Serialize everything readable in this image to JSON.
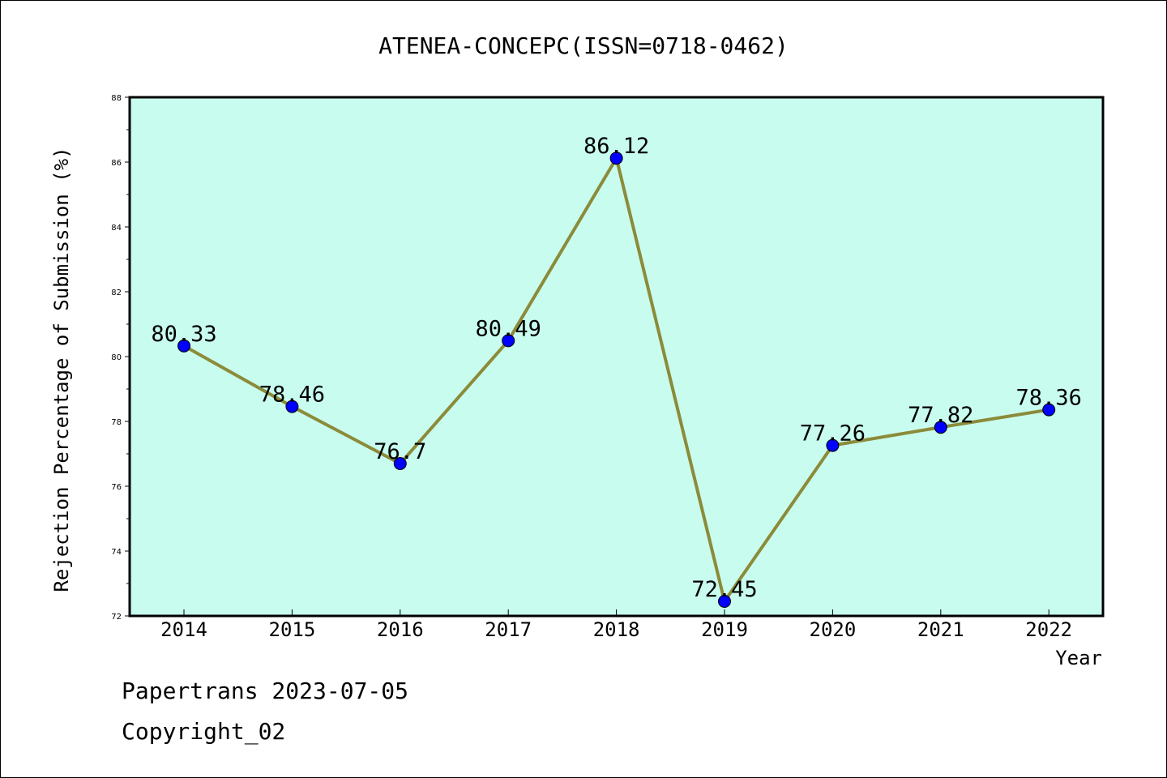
{
  "chart_data": {
    "type": "line",
    "title": "ATENEA-CONCEPC(ISSN=0718-0462)",
    "xlabel": "Year",
    "ylabel": "Rejection Percentage of Submission (%)",
    "categories": [
      "2014",
      "2015",
      "2016",
      "2017",
      "2018",
      "2019",
      "2020",
      "2021",
      "2022"
    ],
    "series": [
      {
        "values": [
          80.33,
          78.46,
          76.7,
          80.49,
          86.12,
          72.45,
          77.26,
          77.82,
          78.36
        ],
        "labels": [
          "80.33",
          "78.46",
          "76.7",
          "80.49",
          "86.12",
          "72.45",
          "77.26",
          "77.82",
          "78.36"
        ]
      }
    ],
    "ylim": [
      72,
      88
    ],
    "yticks": [
      72,
      74,
      76,
      78,
      80,
      82,
      84,
      86,
      88
    ],
    "grid": false,
    "colors": {
      "plot_background": "#c8fcee",
      "line": "#8b8b3a",
      "marker": "#0000ff"
    }
  },
  "footer": {
    "line1": "Papertrans 2023-07-05",
    "line2": "Copyright_02"
  }
}
